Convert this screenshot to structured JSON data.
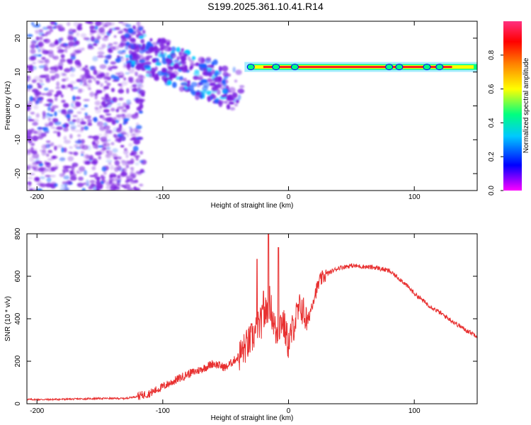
{
  "title": "S199.2025.361.10.41.R14",
  "colors": {
    "snr_line": "#e83030",
    "colorbar": [
      "#ff00ff",
      "#0000ff",
      "#00c8ff",
      "#00ff80",
      "#ffff00",
      "#ff8000",
      "#ff0000",
      "#ff3080"
    ],
    "scatter_purple": "#7a1fe0",
    "scatter_blue": "#1f5fff",
    "ridge_red": "#ff2020"
  },
  "chart_data": [
    {
      "type": "heatmap",
      "xlabel": "Height of straight line (km)",
      "ylabel": "Frequency (Hz)",
      "xlim": [
        -208,
        150
      ],
      "ylim": [
        -25,
        25
      ],
      "x_ticks": [
        "-200",
        "-100",
        "0",
        "100"
      ],
      "y_ticks": [
        "20",
        "10",
        "0",
        "-10",
        "-20"
      ],
      "colorbar": {
        "label": "Normalized spectral amplitude",
        "range": [
          0.0,
          1.0
        ],
        "ticks": [
          "0.0",
          "0.2",
          "0.4",
          "0.6",
          "0.8"
        ]
      },
      "features": {
        "noise_region_x": [
          -208,
          -115
        ],
        "diagonal_band": {
          "from": [
            -130,
            18
          ],
          "to": [
            -40,
            4
          ]
        },
        "ridge": {
          "x_range": [
            -35,
            150
          ],
          "frequency": 11.5
        }
      },
      "grid": false
    },
    {
      "type": "line",
      "xlabel": "Height of straight line (km)",
      "ylabel": "SNR (10 * v/v)",
      "xlim": [
        -208,
        150
      ],
      "ylim": [
        0,
        800
      ],
      "x_ticks": [
        "-200",
        "-100",
        "0",
        "100"
      ],
      "y_ticks": [
        "0",
        "200",
        "400",
        "600",
        "800"
      ],
      "grid": false,
      "series": [
        {
          "x": [
            -208,
            -190,
            -170,
            -150,
            -130,
            -120,
            -110,
            -100,
            -90,
            -80,
            -70,
            -60,
            -50,
            -40,
            -30,
            -20,
            -15,
            -10,
            -5,
            0,
            5,
            10,
            15,
            20,
            25,
            30,
            40,
            50,
            60,
            70,
            80,
            90,
            100,
            110,
            120,
            130,
            140,
            150
          ],
          "y": [
            20,
            20,
            22,
            25,
            25,
            35,
            50,
            80,
            110,
            140,
            160,
            190,
            170,
            220,
            300,
            400,
            480,
            330,
            400,
            280,
            390,
            460,
            380,
            500,
            580,
            610,
            640,
            650,
            645,
            640,
            625,
            580,
            520,
            470,
            430,
            390,
            350,
            320
          ]
        }
      ],
      "peaks": [
        {
          "x": -16,
          "y": 810
        },
        {
          "x": -25,
          "y": 680
        },
        {
          "x": -8,
          "y": 735
        },
        {
          "x": -20,
          "y": 530
        }
      ]
    }
  ]
}
